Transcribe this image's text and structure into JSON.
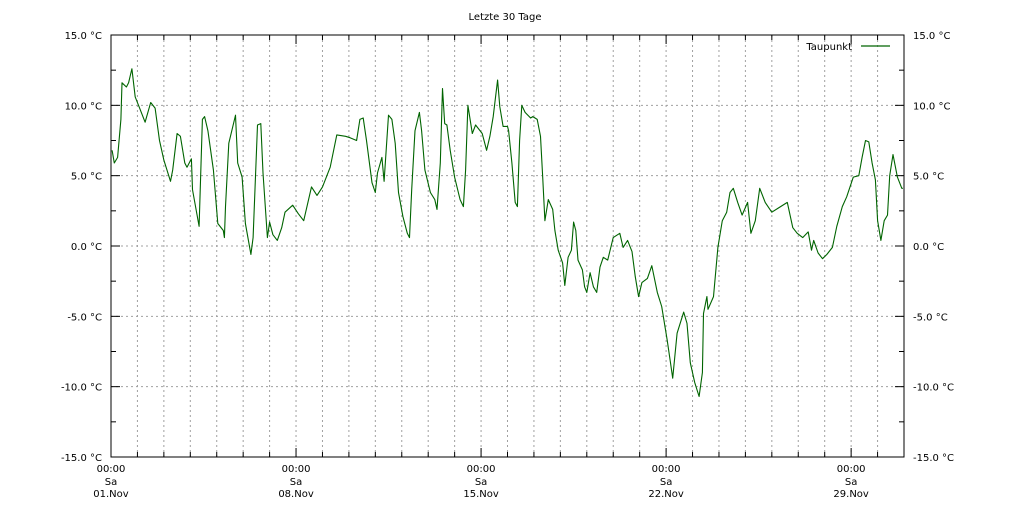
{
  "chart_data": {
    "type": "line",
    "title": "Letzte 30 Tage",
    "xlabel": "",
    "ylabel": "",
    "unit": "°C",
    "xlim": [
      "11-01 00:00",
      "12-01 00:00"
    ],
    "ylim": [
      -15,
      15
    ],
    "y_major_step": 5,
    "y_minor_step": 2.5,
    "grid": true,
    "legend_position": "top-right",
    "colors": {
      "series": "#006400",
      "grid": "#a0a0a0",
      "axis": "#000000"
    },
    "y_ticks": [
      "15.0 °C",
      "10.0 °C",
      "5.0 °C",
      "0.0 °C",
      "-5.0 °C",
      "-10.0 °C",
      "-15.0 °C"
    ],
    "y_tick_values": [
      15,
      10,
      5,
      0,
      -5,
      -10,
      -15
    ],
    "x_ticks": [
      {
        "date": "11-01 00:00",
        "time": "00:00",
        "weekday": "Sa",
        "day": "01.Nov"
      },
      {
        "date": "11-08 00:00",
        "time": "00:00",
        "weekday": "Sa",
        "day": "08.Nov"
      },
      {
        "date": "11-15 00:00",
        "time": "00:00",
        "weekday": "Sa",
        "day": "15.Nov"
      },
      {
        "date": "11-22 00:00",
        "time": "00:00",
        "weekday": "Sa",
        "day": "22.Nov"
      },
      {
        "date": "11-29 00:00",
        "time": "00:00",
        "weekday": "Sa",
        "day": "29.Nov"
      }
    ],
    "series": [
      {
        "name": "Taupunkt",
        "x": [
          "11-01 01:00",
          "11-01 03:00",
          "11-01 06:00",
          "11-01 09:00",
          "11-01 10:00",
          "11-01 14:00",
          "11-01 16:00",
          "11-01 19:00",
          "11-01 22:00",
          "11-02 02:00",
          "11-02 07:00",
          "11-02 12:00",
          "11-02 16:00",
          "11-02 20:00",
          "11-03 00:00",
          "11-03 06:00",
          "11-03 08:00",
          "11-03 12:00",
          "11-03 15:00",
          "11-03 19:00",
          "11-03 21:00",
          "11-04 01:00",
          "11-04 02:00",
          "11-04 08:00",
          "11-04 11:00",
          "11-04 13:00",
          "11-04 16:00",
          "11-04 21:00",
          "11-05 01:00",
          "11-05 06:00",
          "11-05 07:00",
          "11-05 08:00",
          "11-05 11:00",
          "11-05 17:00",
          "11-05 19:00",
          "11-05 23:00",
          "11-06 02:00",
          "11-06 07:00",
          "11-06 09:00",
          "11-06 13:00",
          "11-06 16:00",
          "11-06 18:00",
          "11-06 22:00",
          "11-07 00:00",
          "11-07 03:00",
          "11-07 07:00",
          "11-07 11:00",
          "11-07 14:00",
          "11-07 21:00",
          "11-08 02:00",
          "11-08 07:00",
          "11-08 14:00",
          "11-08 19:00",
          "11-09 00:00",
          "11-09 07:00",
          "11-09 13:00",
          "11-09 21:00",
          "11-10 01:00",
          "11-10 07:00",
          "11-10 10:00",
          "11-10 13:00",
          "11-10 16:00",
          "11-10 21:00",
          "11-11 00:00",
          "11-11 02:00",
          "11-11 06:00",
          "11-11 08:00",
          "11-11 12:00",
          "11-11 15:00",
          "11-11 18:00",
          "11-11 21:00",
          "11-12 01:00",
          "11-12 05:00",
          "11-12 07:00",
          "11-12 09:00",
          "11-12 12:00",
          "11-12 16:00",
          "11-12 18:00",
          "11-12 21:00",
          "11-13 02:00",
          "11-13 06:00",
          "11-13 08:00",
          "11-13 11:00",
          "11-13 13:00",
          "11-13 15:00",
          "11-13 17:00",
          "11-13 20:00",
          "11-14 00:00",
          "11-14 05:00",
          "11-14 08:00",
          "11-14 10:00",
          "11-14 12:00",
          "11-14 16:00",
          "11-14 19:00",
          "11-15 01:00",
          "11-15 05:00",
          "11-15 08:00",
          "11-15 11:00",
          "11-15 15:00",
          "11-15 17:00",
          "11-15 20:00",
          "11-16 00:00",
          "11-16 01:00",
          "11-16 04:00",
          "11-16 07:00",
          "11-16 09:00",
          "11-16 11:00",
          "11-16 13:00",
          "11-16 16:00",
          "11-16 21:00",
          "11-16 23:00",
          "11-17 03:00",
          "11-17 06:00",
          "11-17 08:00",
          "11-17 10:00",
          "11-17 13:00",
          "11-17 17:00",
          "11-17 19:00",
          "11-17 22:00",
          "11-18 02:00",
          "11-18 04:00",
          "11-18 07:00",
          "11-18 10:00",
          "11-18 12:00",
          "11-18 14:00",
          "11-18 16:00",
          "11-18 20:00",
          "11-18 22:00",
          "11-19 00:00",
          "11-19 03:00",
          "11-19 06:00",
          "11-19 09:00",
          "11-19 12:00",
          "11-19 15:00",
          "11-19 19:00",
          "11-20 00:00",
          "11-20 06:00",
          "11-20 09:00",
          "11-20 13:00",
          "11-20 17:00",
          "11-20 20:00",
          "11-20 23:00",
          "11-21 02:00",
          "11-21 07:00",
          "11-21 11:00",
          "11-21 16:00",
          "11-21 20:00",
          "11-22 01:00",
          "11-22 04:00",
          "11-22 06:00",
          "11-22 10:00",
          "11-22 16:00",
          "11-22 19:00",
          "11-22 22:00",
          "11-23 02:00",
          "11-23 06:00",
          "11-23 09:00",
          "11-23 10:00",
          "11-23 13:00",
          "11-23 14:00",
          "11-23 19:00",
          "11-23 23:00",
          "11-24 03:00",
          "11-24 07:00",
          "11-24 10:00",
          "11-24 13:00",
          "11-24 17:00",
          "11-24 21:00",
          "11-25 02:00",
          "11-25 05:00",
          "11-25 09:00",
          "11-25 13:00",
          "11-25 18:00",
          "11-26 00:00",
          "11-26 06:00",
          "11-26 14:00",
          "11-26 19:00",
          "11-26 23:00",
          "11-27 04:00",
          "11-27 09:00",
          "11-27 12:00",
          "11-27 14:00",
          "11-27 18:00",
          "11-27 22:00",
          "11-28 02:00",
          "11-28 07:00",
          "11-28 11:00",
          "11-28 16:00",
          "11-28 20:00",
          "11-29 02:00",
          "11-29 07:00",
          "11-29 10:00",
          "11-29 13:00",
          "11-29 16:00",
          "11-29 19:00",
          "11-29 22:00",
          "11-30 00:00",
          "11-30 03:00",
          "11-30 06:00",
          "11-30 09:00",
          "11-30 11:00",
          "11-30 14:00",
          "11-30 18:00",
          "11-30 22:00",
          "11-30 23:00"
        ],
        "values": [
          6.8,
          5.9,
          6.3,
          9.0,
          11.6,
          11.3,
          11.6,
          12.6,
          10.6,
          9.8,
          8.8,
          10.2,
          9.8,
          7.5,
          6.1,
          4.6,
          5.4,
          8.0,
          7.8,
          5.9,
          5.6,
          6.2,
          4.0,
          1.4,
          9.0,
          9.2,
          8.2,
          5.4,
          1.6,
          1.1,
          0.6,
          2.8,
          7.3,
          9.3,
          5.9,
          4.9,
          1.6,
          -0.6,
          0.6,
          8.6,
          8.7,
          5.2,
          0.6,
          1.7,
          0.8,
          0.4,
          1.3,
          2.4,
          2.9,
          2.3,
          1.8,
          4.2,
          3.6,
          4.2,
          5.6,
          7.9,
          7.8,
          7.7,
          7.5,
          9.0,
          9.1,
          7.5,
          4.5,
          3.8,
          5.2,
          6.3,
          4.6,
          9.3,
          9.0,
          7.3,
          3.8,
          2.1,
          0.9,
          0.6,
          4.0,
          8.2,
          9.5,
          8.2,
          5.4,
          3.8,
          3.3,
          2.6,
          5.9,
          11.2,
          8.7,
          8.6,
          6.8,
          4.9,
          3.3,
          2.8,
          5.4,
          10.0,
          8.0,
          8.6,
          8.0,
          6.8,
          7.8,
          9.2,
          11.8,
          9.9,
          8.5,
          8.5,
          8.2,
          5.9,
          3.1,
          2.8,
          7.5,
          10.0,
          9.5,
          9.1,
          9.2,
          9.0,
          7.8,
          4.9,
          1.8,
          3.3,
          2.6,
          1.1,
          -0.3,
          -1.2,
          -2.8,
          -0.8,
          -0.3,
          1.7,
          1.1,
          -1.0,
          -1.7,
          -2.9,
          -3.3,
          -1.9,
          -2.9,
          -3.3,
          -1.5,
          -0.8,
          -1.0,
          0.6,
          0.9,
          -0.1,
          0.4,
          -0.4,
          -2.2,
          -3.6,
          -2.6,
          -2.3,
          -1.4,
          -3.3,
          -4.3,
          -6.7,
          -8.3,
          -9.4,
          -6.2,
          -4.7,
          -5.5,
          -8.3,
          -9.7,
          -10.7,
          -9.0,
          -4.8,
          -3.6,
          -4.5,
          -3.6,
          -0.1,
          1.8,
          2.4,
          3.8,
          4.1,
          3.1,
          2.2,
          3.1,
          0.9,
          1.8,
          4.1,
          3.1,
          2.4,
          2.7,
          3.1,
          1.3,
          0.9,
          0.6,
          1.0,
          -0.3,
          0.4,
          -0.5,
          -0.9,
          -0.6,
          -0.1,
          1.4,
          2.8,
          3.5,
          4.9,
          5.0,
          6.3,
          7.5,
          7.4,
          5.9,
          4.7,
          1.8,
          0.4,
          1.8,
          2.2,
          5.0,
          6.5,
          4.9,
          4.1,
          4.1
        ]
      }
    ]
  }
}
